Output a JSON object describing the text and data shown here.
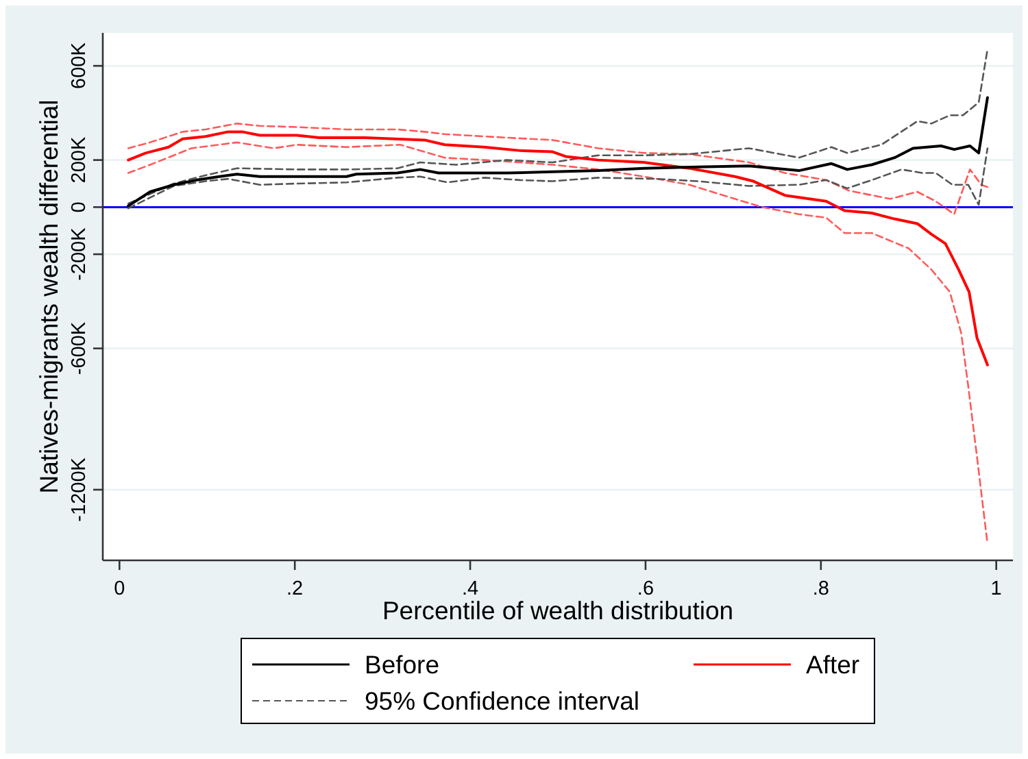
{
  "chart_data": {
    "type": "line",
    "xlabel": "Percentile of wealth distribution",
    "ylabel": "Natives-migrants wealth differential",
    "xlim": [
      -0.019,
      1.019
    ],
    "xticks": [
      0,
      {
        "value": 0.2,
        "label": ".2"
      },
      {
        "value": 0.4,
        "label": ".4"
      },
      {
        "value": 0.6,
        "label": ".6"
      },
      {
        "value": 0.8,
        "label": ".8"
      },
      1
    ],
    "ylim": [
      -1500000,
      740000
    ],
    "yticks": [
      {
        "value": -1200000,
        "label": "-1200K"
      },
      {
        "value": -600000,
        "label": "-600K"
      },
      {
        "value": -200000,
        "label": "-200K"
      },
      0,
      {
        "value": 200000,
        "label": "200K"
      },
      {
        "value": 600000,
        "label": "600K"
      }
    ],
    "grid": "y",
    "legend": "bottom",
    "ref_lines": [
      {
        "axis": "y",
        "value": 0,
        "color": "#0000ff"
      }
    ],
    "series": [
      {
        "name": "Before",
        "color": "#000000",
        "x": [
          0.01,
          0.035,
          0.062,
          0.088,
          0.114,
          0.134,
          0.16,
          0.202,
          0.259,
          0.27,
          0.317,
          0.343,
          0.364,
          0.442,
          0.494,
          0.546,
          0.598,
          0.65,
          0.718,
          0.775,
          0.812,
          0.83,
          0.858,
          0.884,
          0.905,
          0.937,
          0.952,
          0.97,
          0.98,
          0.99
        ],
        "values": [
          5000,
          65000,
          95000,
          115000,
          130000,
          140000,
          130000,
          130000,
          130000,
          140000,
          145000,
          160000,
          145000,
          145000,
          150000,
          155000,
          165000,
          170000,
          175000,
          155000,
          185000,
          160000,
          180000,
          210000,
          250000,
          260000,
          245000,
          260000,
          230000,
          465000
        ]
      },
      {
        "name": "After",
        "color": "#ff0000",
        "x": [
          0.01,
          0.03,
          0.056,
          0.072,
          0.098,
          0.124,
          0.14,
          0.16,
          0.202,
          0.228,
          0.28,
          0.348,
          0.371,
          0.416,
          0.457,
          0.494,
          0.509,
          0.546,
          0.598,
          0.65,
          0.702,
          0.723,
          0.759,
          0.806,
          0.827,
          0.858,
          0.884,
          0.91,
          0.926,
          0.942,
          0.957,
          0.969,
          0.978,
          0.99
        ],
        "values": [
          200000,
          230000,
          255000,
          290000,
          300000,
          320000,
          320000,
          305000,
          305000,
          295000,
          295000,
          285000,
          265000,
          255000,
          240000,
          235000,
          215000,
          200000,
          190000,
          165000,
          130000,
          110000,
          50000,
          25000,
          -15000,
          -25000,
          -50000,
          -70000,
          -115000,
          -155000,
          -265000,
          -360000,
          -555000,
          -670000
        ]
      },
      {
        "name": "95% Confidence interval",
        "color": "#555555",
        "line_style": "dashed",
        "x": [
          0.01,
          0.062,
          0.098,
          0.124,
          0.16,
          0.202,
          0.259,
          0.317,
          0.343,
          0.374,
          0.416,
          0.457,
          0.494,
          0.546,
          0.613,
          0.66,
          0.718,
          0.775,
          0.806,
          0.83,
          0.858,
          0.892,
          0.916,
          0.931,
          0.95,
          0.968,
          0.98,
          0.99
        ],
        "values": [
          -5000,
          90000,
          110000,
          120000,
          95000,
          100000,
          105000,
          125000,
          130000,
          105000,
          125000,
          115000,
          110000,
          125000,
          120000,
          110000,
          90000,
          95000,
          115000,
          80000,
          115000,
          160000,
          145000,
          145000,
          95000,
          95000,
          10000,
          250000
        ]
      },
      {
        "color": "#555555",
        "line_style": "dashed",
        "x": [
          0.01,
          0.062,
          0.098,
          0.134,
          0.202,
          0.259,
          0.317,
          0.343,
          0.384,
          0.442,
          0.494,
          0.546,
          0.598,
          0.65,
          0.718,
          0.775,
          0.812,
          0.83,
          0.869,
          0.91,
          0.926,
          0.947,
          0.962,
          0.98,
          0.99
        ],
        "values": [
          15000,
          100000,
          135000,
          165000,
          160000,
          160000,
          165000,
          190000,
          180000,
          200000,
          190000,
          220000,
          220000,
          225000,
          250000,
          210000,
          255000,
          230000,
          265000,
          365000,
          355000,
          390000,
          390000,
          445000,
          670000
        ]
      },
      {
        "color": "#ff5a5a",
        "line_style": "dashed",
        "x": [
          0.01,
          0.035,
          0.062,
          0.082,
          0.134,
          0.176,
          0.202,
          0.259,
          0.32,
          0.371,
          0.416,
          0.457,
          0.494,
          0.546,
          0.598,
          0.65,
          0.702,
          0.733,
          0.775,
          0.806,
          0.827,
          0.858,
          0.9,
          0.926,
          0.947,
          0.96,
          0.968,
          0.978,
          0.99
        ],
        "values": [
          145000,
          180000,
          220000,
          250000,
          275000,
          250000,
          265000,
          255000,
          265000,
          210000,
          200000,
          190000,
          180000,
          160000,
          130000,
          95000,
          35000,
          0,
          -30000,
          -45000,
          -110000,
          -110000,
          -175000,
          -265000,
          -360000,
          -535000,
          -760000,
          -1060000,
          -1430000
        ]
      },
      {
        "color": "#ff5a5a",
        "line_style": "dashed",
        "x": [
          0.01,
          0.035,
          0.072,
          0.098,
          0.134,
          0.16,
          0.202,
          0.259,
          0.317,
          0.348,
          0.371,
          0.442,
          0.494,
          0.546,
          0.598,
          0.65,
          0.718,
          0.759,
          0.806,
          0.832,
          0.879,
          0.91,
          0.931,
          0.952,
          0.97,
          0.983,
          0.99
        ],
        "values": [
          250000,
          275000,
          320000,
          330000,
          355000,
          345000,
          340000,
          330000,
          330000,
          320000,
          310000,
          295000,
          285000,
          250000,
          230000,
          225000,
          190000,
          145000,
          115000,
          70000,
          35000,
          65000,
          25000,
          -30000,
          160000,
          95000,
          85000
        ]
      }
    ]
  }
}
